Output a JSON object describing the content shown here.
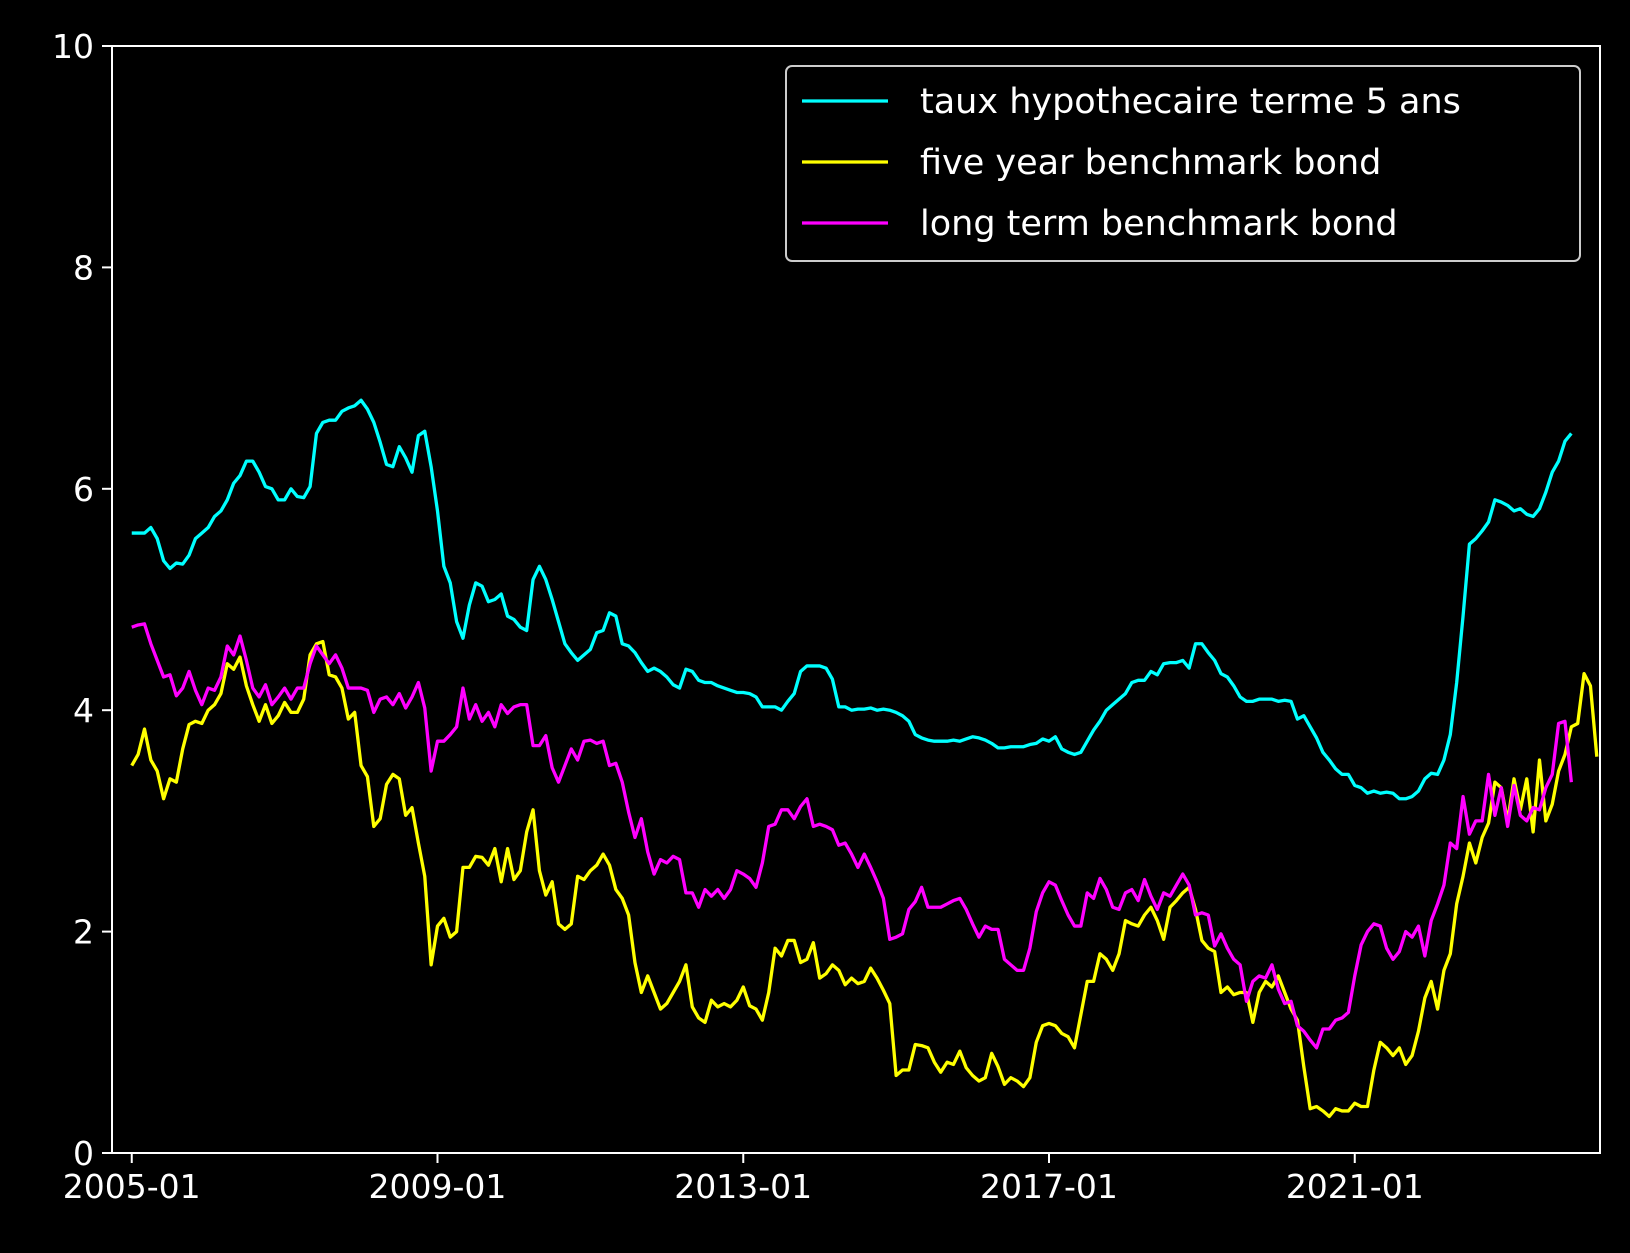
{
  "chart_data": {
    "type": "line",
    "x_axis": {
      "type": "date",
      "start": "2005-01",
      "step": "1 month",
      "tick_labels": [
        "2005-01",
        "2009-01",
        "2013-01",
        "2017-01",
        "2021-01"
      ]
    },
    "ylim": [
      0,
      10
    ],
    "y_ticks": [
      "0",
      "2",
      "4",
      "6",
      "8",
      "10"
    ],
    "grid": false,
    "legend_position": "top-right",
    "background": "#000000",
    "axis_color": "#ffffff",
    "series": [
      {
        "name": "taux hypothecaire terme 5 ans",
        "color": "#00ffff",
        "values": [
          5.6,
          5.6,
          5.6,
          5.65,
          5.55,
          5.35,
          5.28,
          5.33,
          5.32,
          5.4,
          5.55,
          5.6,
          5.65,
          5.75,
          5.8,
          5.9,
          6.05,
          6.12,
          6.25,
          6.25,
          6.15,
          6.02,
          6.0,
          5.9,
          5.9,
          6.0,
          5.93,
          5.92,
          6.02,
          6.5,
          6.6,
          6.62,
          6.62,
          6.7,
          6.73,
          6.75,
          6.8,
          6.72,
          6.6,
          6.42,
          6.22,
          6.2,
          6.38,
          6.28,
          6.15,
          6.48,
          6.52,
          6.2,
          5.8,
          5.3,
          5.15,
          4.8,
          4.65,
          4.95,
          5.15,
          5.12,
          4.98,
          5.0,
          5.05,
          4.85,
          4.82,
          4.75,
          4.72,
          5.18,
          5.3,
          5.18,
          5.0,
          4.8,
          4.6,
          4.52,
          4.45,
          4.5,
          4.55,
          4.7,
          4.72,
          4.88,
          4.85,
          4.6,
          4.58,
          4.52,
          4.43,
          4.35,
          4.38,
          4.35,
          4.3,
          4.23,
          4.2,
          4.37,
          4.35,
          4.27,
          4.25,
          4.25,
          4.22,
          4.2,
          4.18,
          4.16,
          4.16,
          4.15,
          4.12,
          4.03,
          4.03,
          4.03,
          4.0,
          4.08,
          4.15,
          4.35,
          4.4,
          4.4,
          4.4,
          4.38,
          4.28,
          4.03,
          4.03,
          4.0,
          4.01,
          4.01,
          4.02,
          4.0,
          4.01,
          4.0,
          3.98,
          3.95,
          3.9,
          3.78,
          3.75,
          3.73,
          3.72,
          3.72,
          3.72,
          3.73,
          3.72,
          3.74,
          3.76,
          3.75,
          3.73,
          3.7,
          3.66,
          3.66,
          3.67,
          3.67,
          3.67,
          3.69,
          3.7,
          3.74,
          3.72,
          3.76,
          3.65,
          3.62,
          3.6,
          3.62,
          3.72,
          3.82,
          3.9,
          4.0,
          4.05,
          4.1,
          4.15,
          4.25,
          4.27,
          4.27,
          4.35,
          4.32,
          4.42,
          4.43,
          4.43,
          4.45,
          4.38,
          4.6,
          4.6,
          4.52,
          4.45,
          4.33,
          4.3,
          4.22,
          4.12,
          4.08,
          4.08,
          4.1,
          4.1,
          4.1,
          4.08,
          4.09,
          4.08,
          3.92,
          3.95,
          3.85,
          3.75,
          3.62,
          3.55,
          3.47,
          3.42,
          3.42,
          3.32,
          3.3,
          3.25,
          3.27,
          3.25,
          3.26,
          3.25,
          3.2,
          3.2,
          3.22,
          3.27,
          3.38,
          3.43,
          3.42,
          3.55,
          3.78,
          4.25,
          4.85,
          5.5,
          5.55,
          5.62,
          5.7,
          5.9,
          5.88,
          5.85,
          5.8,
          5.82,
          5.77,
          5.75,
          5.82,
          5.97,
          6.15,
          6.25,
          6.43,
          6.5
        ]
      },
      {
        "name": "five year benchmark bond",
        "color": "#ffff00",
        "values": [
          3.5,
          3.6,
          3.83,
          3.55,
          3.45,
          3.2,
          3.38,
          3.35,
          3.65,
          3.87,
          3.9,
          3.88,
          4.0,
          4.05,
          4.15,
          4.42,
          4.37,
          4.48,
          4.22,
          4.05,
          3.9,
          4.05,
          3.88,
          3.95,
          4.07,
          3.98,
          3.98,
          4.1,
          4.5,
          4.6,
          4.62,
          4.32,
          4.3,
          4.2,
          3.92,
          3.98,
          3.5,
          3.4,
          2.95,
          3.02,
          3.33,
          3.42,
          3.38,
          3.05,
          3.12,
          2.8,
          2.5,
          1.7,
          2.05,
          2.12,
          1.95,
          2.0,
          2.58,
          2.58,
          2.68,
          2.67,
          2.6,
          2.75,
          2.45,
          2.75,
          2.47,
          2.55,
          2.9,
          3.1,
          2.55,
          2.33,
          2.45,
          2.07,
          2.02,
          2.07,
          2.5,
          2.47,
          2.55,
          2.6,
          2.7,
          2.6,
          2.38,
          2.3,
          2.15,
          1.72,
          1.45,
          1.6,
          1.45,
          1.3,
          1.35,
          1.45,
          1.55,
          1.7,
          1.32,
          1.22,
          1.18,
          1.38,
          1.32,
          1.35,
          1.32,
          1.38,
          1.5,
          1.33,
          1.3,
          1.2,
          1.45,
          1.85,
          1.78,
          1.92,
          1.92,
          1.72,
          1.75,
          1.9,
          1.58,
          1.62,
          1.7,
          1.65,
          1.52,
          1.58,
          1.53,
          1.55,
          1.67,
          1.58,
          1.47,
          1.35,
          0.7,
          0.75,
          0.75,
          0.98,
          0.97,
          0.95,
          0.82,
          0.73,
          0.82,
          0.8,
          0.92,
          0.77,
          0.7,
          0.65,
          0.68,
          0.9,
          0.78,
          0.62,
          0.68,
          0.65,
          0.6,
          0.68,
          1.0,
          1.15,
          1.17,
          1.15,
          1.08,
          1.05,
          0.95,
          1.25,
          1.55,
          1.55,
          1.8,
          1.75,
          1.65,
          1.8,
          2.1,
          2.07,
          2.05,
          2.15,
          2.22,
          2.1,
          1.93,
          2.22,
          2.28,
          2.35,
          2.4,
          2.2,
          1.92,
          1.85,
          1.82,
          1.45,
          1.5,
          1.43,
          1.45,
          1.45,
          1.18,
          1.45,
          1.55,
          1.5,
          1.6,
          1.45,
          1.3,
          1.2,
          0.78,
          0.4,
          0.42,
          0.38,
          0.33,
          0.4,
          0.38,
          0.38,
          0.45,
          0.42,
          0.42,
          0.75,
          1.0,
          0.95,
          0.88,
          0.95,
          0.8,
          0.88,
          1.1,
          1.4,
          1.55,
          1.3,
          1.65,
          1.8,
          2.25,
          2.5,
          2.8,
          2.62,
          2.85,
          2.98,
          3.35,
          3.3,
          3.0,
          3.38,
          3.1,
          3.38,
          2.9,
          3.55,
          3.0,
          3.15,
          3.45,
          3.6,
          3.85,
          3.88,
          4.33,
          4.22,
          3.58
        ]
      },
      {
        "name": "long term benchmark bond",
        "color": "#ff00ff",
        "values": [
          4.75,
          4.77,
          4.78,
          4.6,
          4.45,
          4.3,
          4.32,
          4.13,
          4.2,
          4.35,
          4.18,
          4.05,
          4.2,
          4.18,
          4.3,
          4.58,
          4.5,
          4.67,
          4.45,
          4.2,
          4.12,
          4.23,
          4.05,
          4.12,
          4.2,
          4.1,
          4.2,
          4.2,
          4.42,
          4.58,
          4.5,
          4.42,
          4.5,
          4.38,
          4.2,
          4.2,
          4.2,
          4.18,
          3.98,
          4.1,
          4.12,
          4.05,
          4.15,
          4.02,
          4.12,
          4.25,
          4.02,
          3.45,
          3.72,
          3.72,
          3.78,
          3.85,
          4.2,
          3.92,
          4.05,
          3.9,
          3.98,
          3.85,
          4.05,
          3.97,
          4.03,
          4.05,
          4.05,
          3.68,
          3.68,
          3.77,
          3.48,
          3.35,
          3.5,
          3.65,
          3.55,
          3.72,
          3.73,
          3.7,
          3.72,
          3.5,
          3.52,
          3.35,
          3.08,
          2.85,
          3.02,
          2.72,
          2.52,
          2.65,
          2.62,
          2.68,
          2.65,
          2.35,
          2.35,
          2.22,
          2.38,
          2.32,
          2.38,
          2.3,
          2.38,
          2.55,
          2.52,
          2.48,
          2.4,
          2.62,
          2.95,
          2.97,
          3.1,
          3.1,
          3.02,
          3.13,
          3.2,
          2.95,
          2.97,
          2.95,
          2.92,
          2.78,
          2.8,
          2.7,
          2.58,
          2.7,
          2.58,
          2.45,
          2.3,
          1.93,
          1.95,
          1.98,
          2.2,
          2.27,
          2.4,
          2.22,
          2.22,
          2.22,
          2.25,
          2.28,
          2.3,
          2.2,
          2.07,
          1.95,
          2.05,
          2.02,
          2.02,
          1.75,
          1.7,
          1.65,
          1.65,
          1.85,
          2.18,
          2.35,
          2.45,
          2.42,
          2.28,
          2.15,
          2.05,
          2.05,
          2.35,
          2.3,
          2.48,
          2.38,
          2.22,
          2.2,
          2.35,
          2.38,
          2.28,
          2.47,
          2.32,
          2.2,
          2.35,
          2.32,
          2.42,
          2.52,
          2.42,
          2.15,
          2.17,
          2.15,
          1.87,
          1.98,
          1.85,
          1.75,
          1.7,
          1.37,
          1.55,
          1.6,
          1.58,
          1.7,
          1.48,
          1.35,
          1.37,
          1.15,
          1.1,
          1.02,
          0.95,
          1.12,
          1.12,
          1.2,
          1.22,
          1.27,
          1.6,
          1.88,
          2.0,
          2.07,
          2.05,
          1.85,
          1.75,
          1.82,
          2.0,
          1.95,
          2.05,
          1.78,
          2.1,
          2.25,
          2.42,
          2.8,
          2.75,
          3.22,
          2.88,
          3.0,
          3.0,
          3.42,
          3.05,
          3.3,
          2.95,
          3.32,
          3.05,
          3.0,
          3.12,
          3.1,
          3.3,
          3.42,
          3.88,
          3.9,
          3.35
        ]
      }
    ]
  }
}
